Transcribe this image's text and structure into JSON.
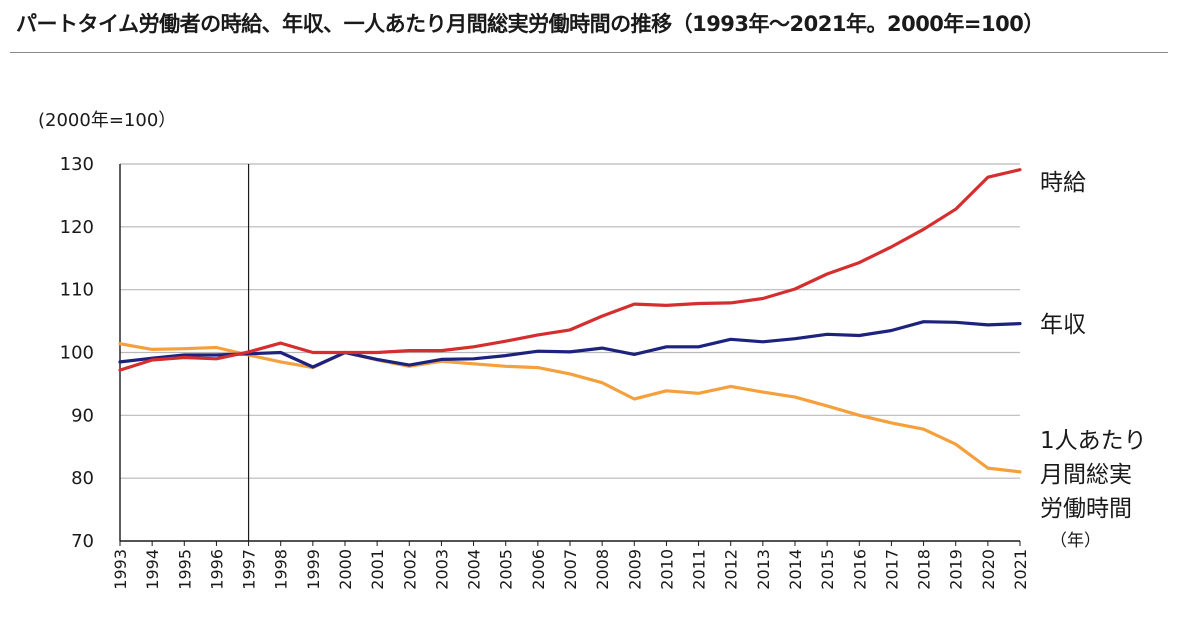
{
  "header": {
    "title": "パートタイム労働者の時給、年収、一人あたり月間総実労働時間の推移（1993年～2021年。2000年=100）"
  },
  "axis": {
    "y_unit": "(2000年=100）",
    "x_unit": "（年）"
  },
  "labels": {
    "hourly": "時給",
    "annual": "年収",
    "hours_lines": [
      "1人あたり",
      "月間総実",
      "労働時間"
    ]
  },
  "colors": {
    "hourly": "#d42e2e",
    "annual": "#1d237d",
    "hours": "#f5a03c",
    "grid": "#b9b9b9",
    "axis": "#1a1a1a"
  },
  "chart_data": {
    "type": "line",
    "title": "パートタイム労働者の時給、年収、一人あたり月間総実労働時間の推移（1993年～2021年。2000年=100）",
    "ylabel": "(2000年=100）",
    "xlabel": "（年）",
    "x": [
      "1993",
      "1994",
      "1995",
      "1996",
      "1997",
      "1998",
      "1999",
      "2000",
      "2001",
      "2002",
      "2003",
      "2004",
      "2005",
      "2006",
      "2007",
      "2008",
      "2009",
      "2010",
      "2011",
      "2012",
      "2013",
      "2014",
      "2015",
      "2016",
      "2017",
      "2018",
      "2019",
      "2020",
      "2021"
    ],
    "ylim": [
      70,
      130
    ],
    "yticks": [
      70,
      80,
      90,
      100,
      110,
      120,
      130
    ],
    "grid": true,
    "reference_line_x": "1997",
    "series": [
      {
        "name": "時給",
        "color": "#d42e2e",
        "values": [
          97.2,
          98.8,
          99.2,
          99.0,
          100.1,
          101.5,
          100.0,
          100.0,
          100.0,
          100.3,
          100.3,
          100.9,
          101.8,
          102.8,
          103.6,
          105.8,
          107.7,
          107.5,
          107.8,
          107.9,
          108.6,
          110.1,
          112.5,
          114.3,
          116.8,
          119.6,
          122.8,
          127.9,
          129.1
        ]
      },
      {
        "name": "年収",
        "color": "#1d237d",
        "values": [
          98.5,
          99.1,
          99.6,
          99.6,
          99.8,
          100.0,
          97.7,
          100.0,
          98.9,
          98.0,
          98.9,
          99.0,
          99.5,
          100.2,
          100.1,
          100.7,
          99.7,
          100.9,
          100.9,
          102.1,
          101.7,
          102.2,
          102.9,
          102.7,
          103.5,
          104.9,
          104.8,
          104.4,
          104.6
        ]
      },
      {
        "name": "1人あたり月間総実労働時間",
        "color": "#f5a03c",
        "values": [
          101.4,
          100.5,
          100.6,
          100.8,
          99.6,
          98.5,
          97.6,
          100.0,
          98.8,
          97.8,
          98.6,
          98.2,
          97.8,
          97.6,
          96.6,
          95.2,
          92.6,
          93.9,
          93.5,
          94.6,
          93.7,
          92.9,
          91.5,
          90.0,
          88.8,
          87.8,
          85.4,
          81.6,
          81.0
        ]
      }
    ]
  }
}
